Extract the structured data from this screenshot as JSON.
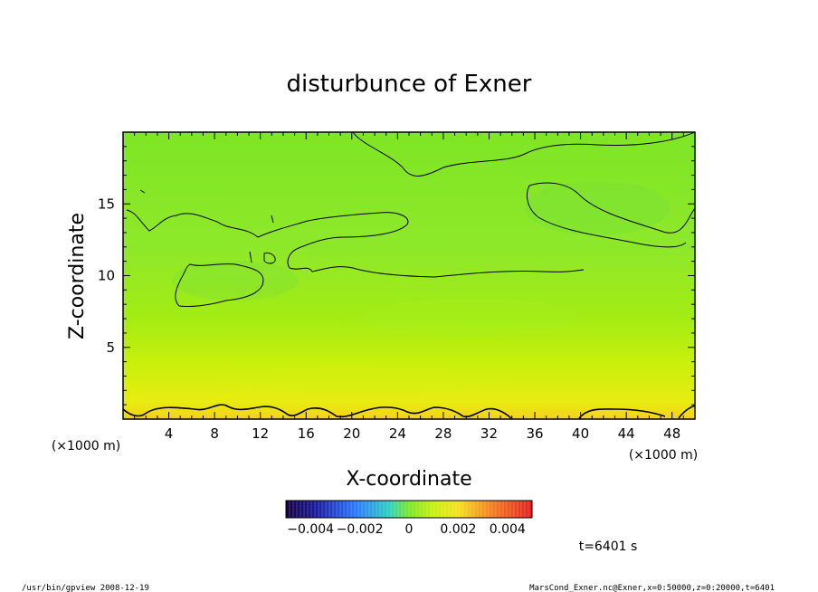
{
  "chart_data": {
    "type": "heatmap",
    "title": "disturbunce of Exner",
    "xlabel": "X-coordinate",
    "ylabel": "Z-coordinate",
    "x_unit_label_left": "(×1000 m)",
    "x_unit_label_right": "(×1000 m)",
    "xlim": [
      0,
      50
    ],
    "ylim": [
      0,
      20
    ],
    "x_ticks": [
      4,
      8,
      12,
      16,
      20,
      24,
      28,
      32,
      36,
      40,
      44,
      48
    ],
    "y_ticks": [
      5,
      10,
      15
    ],
    "colorbar": {
      "range": [
        -0.005,
        0.005
      ],
      "tick_labels": [
        "−0.004",
        "−0.002",
        "0",
        "0.002",
        "0.004"
      ],
      "tick_values": [
        -0.004,
        -0.002,
        0,
        0.002,
        0.004
      ]
    },
    "field_summary": {
      "description_values": [
        {
          "z": 0,
          "value": 0.0022
        },
        {
          "z": 2,
          "value": 0.0016
        },
        {
          "z": 5,
          "value": 0.0009
        },
        {
          "z": 10,
          "value": 0.0006
        },
        {
          "z": 15,
          "value": 0.0004
        },
        {
          "z": 20,
          "value": 0.0004
        }
      ]
    },
    "grid": false,
    "legend": "bottom colorbar"
  },
  "annotations": {
    "time_label": "t=6401 s",
    "footer_left": "/usr/bin/gpview   2008-12-19",
    "footer_right": "MarsCond_Exner.nc@Exner,x=0:50000,z=0:20000,t=6401"
  }
}
